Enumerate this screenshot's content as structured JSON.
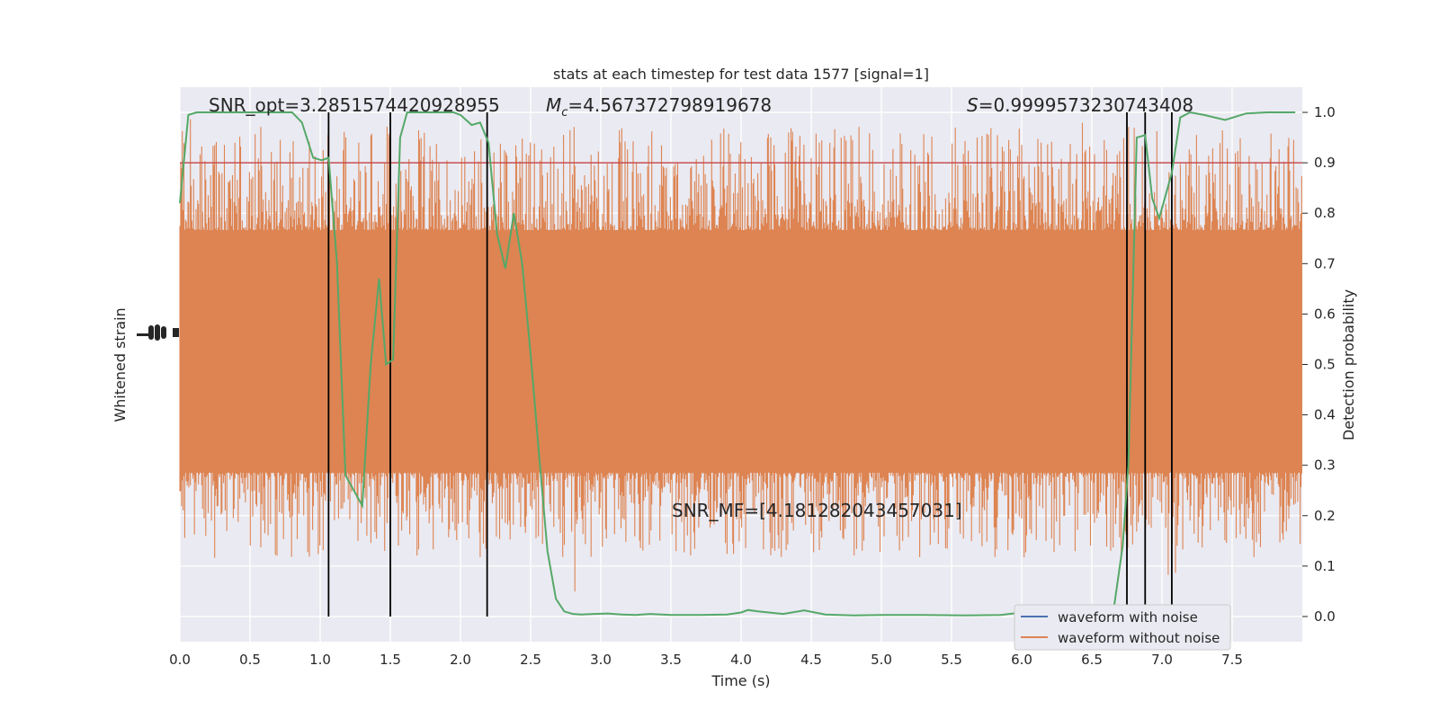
{
  "chart_data": {
    "type": "line",
    "title": "stats at each timestep for test data 1577 [signal=1]",
    "xlabel": "Time (s)",
    "ylabel_left": "Whitened strain",
    "ylabel_right": "Detection probability",
    "xlim": [
      0.0,
      8.0
    ],
    "ylim_right": [
      -0.05,
      1.05
    ],
    "x_ticks": [
      "0.0",
      "0.5",
      "1.0",
      "1.5",
      "2.0",
      "2.5",
      "3.0",
      "3.5",
      "4.0",
      "4.5",
      "5.0",
      "5.5",
      "6.0",
      "6.5",
      "7.0",
      "7.5"
    ],
    "right_ticks": [
      "0.0",
      "0.1",
      "0.2",
      "0.3",
      "0.4",
      "0.5",
      "0.6",
      "0.7",
      "0.8",
      "0.9",
      "1.0"
    ],
    "grid": true,
    "legend_position": "lower-right",
    "annotations": {
      "snr_opt": "SNR_opt=3.2851574420928955",
      "mc_symbol": "M",
      "mc_subscript": "c",
      "mc_value": "=4.567372798919678",
      "s_symbol": "S",
      "s_value": "=0.9999573230743408",
      "snr_mf": "SNR_MF=[4.181282043457031]"
    },
    "threshold": 0.9,
    "event_markers": [
      1.06,
      1.5,
      2.19,
      6.75,
      6.88,
      7.07
    ],
    "series": [
      {
        "name": "waveform with noise",
        "color": "#4c72b0",
        "type": "noise"
      },
      {
        "name": "waveform without noise",
        "color": "#dd8452",
        "type": "noise"
      },
      {
        "color": "#55a868",
        "type": "probability",
        "x": [
          0.0,
          0.06,
          0.12,
          0.2,
          0.3,
          0.4,
          0.5,
          0.6,
          0.7,
          0.8,
          0.87,
          0.95,
          1.01,
          1.06,
          1.12,
          1.18,
          1.24,
          1.3,
          1.36,
          1.42,
          1.47,
          1.52,
          1.57,
          1.62,
          1.68,
          1.75,
          1.85,
          1.95,
          2.0,
          2.08,
          2.14,
          2.2,
          2.26,
          2.32,
          2.38,
          2.44,
          2.5,
          2.56,
          2.62,
          2.68,
          2.74,
          2.8,
          2.86,
          2.95,
          3.05,
          3.15,
          3.25,
          3.35,
          3.5,
          3.7,
          3.9,
          4.0,
          4.05,
          4.12,
          4.3,
          4.45,
          4.6,
          4.8,
          5.0,
          5.3,
          5.6,
          5.85,
          6.0,
          6.2,
          6.4,
          6.55,
          6.65,
          6.72,
          6.76,
          6.82,
          6.88,
          6.93,
          6.98,
          7.03,
          7.07,
          7.13,
          7.2,
          7.3,
          7.45,
          7.6,
          7.75,
          7.85,
          7.95
        ],
        "y": [
          0.82,
          0.995,
          1.0,
          1.0,
          1.0,
          1.0,
          1.0,
          1.0,
          1.0,
          1.0,
          0.98,
          0.91,
          0.905,
          0.91,
          0.7,
          0.28,
          0.25,
          0.22,
          0.5,
          0.67,
          0.5,
          0.51,
          0.95,
          1.0,
          1.0,
          1.0,
          1.0,
          1.0,
          0.995,
          0.975,
          0.98,
          0.94,
          0.76,
          0.69,
          0.8,
          0.7,
          0.52,
          0.32,
          0.13,
          0.035,
          0.01,
          0.005,
          0.004,
          0.005,
          0.006,
          0.004,
          0.003,
          0.005,
          0.003,
          0.003,
          0.004,
          0.008,
          0.013,
          0.01,
          0.005,
          0.012,
          0.004,
          0.002,
          0.003,
          0.003,
          0.002,
          0.003,
          0.008,
          0.004,
          0.003,
          0.004,
          0.003,
          0.14,
          0.3,
          0.95,
          0.955,
          0.83,
          0.79,
          0.84,
          0.88,
          0.99,
          1.0,
          0.995,
          0.985,
          0.998,
          1.0,
          1.0,
          1.0
        ]
      }
    ]
  }
}
